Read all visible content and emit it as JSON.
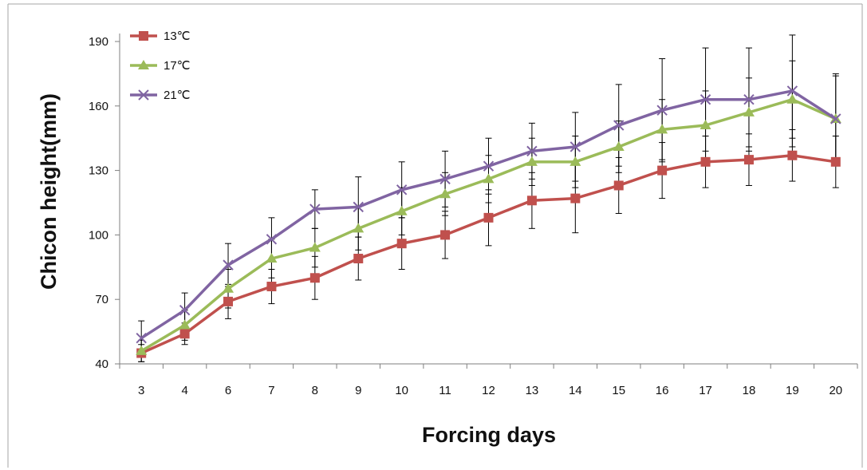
{
  "chart_data": {
    "type": "line",
    "title": "",
    "xlabel": "Forcing days",
    "ylabel": "Chicon height(mm)",
    "categories": [
      "3",
      "4",
      "6",
      "7",
      "8",
      "9",
      "10",
      "11",
      "12",
      "13",
      "14",
      "15",
      "16",
      "17",
      "18",
      "19",
      "20"
    ],
    "ylim": [
      40,
      190
    ],
    "yticks": [
      40,
      70,
      100,
      130,
      160,
      190
    ],
    "grid": false,
    "legend_position": "top-left",
    "series": [
      {
        "name": "13℃",
        "color": "#c0504d",
        "marker": "square",
        "values": [
          45,
          54,
          69,
          76,
          80,
          89,
          96,
          100,
          108,
          116,
          117,
          123,
          130,
          134,
          135,
          137,
          134
        ],
        "error": [
          4,
          5,
          8,
          8,
          10,
          10,
          12,
          11,
          13,
          13,
          16,
          13,
          13,
          12,
          12,
          12,
          12
        ]
      },
      {
        "name": "17℃",
        "color": "#9bbb59",
        "marker": "triangle",
        "values": [
          46,
          58,
          75,
          89,
          94,
          103,
          111,
          119,
          126,
          134,
          134,
          141,
          149,
          151,
          157,
          163,
          154
        ],
        "error": [
          5,
          7,
          9,
          9,
          9,
          10,
          11,
          10,
          11,
          11,
          12,
          12,
          14,
          16,
          16,
          18,
          20
        ]
      },
      {
        "name": "21℃",
        "color": "#8064a2",
        "marker": "x",
        "values": [
          52,
          65,
          86,
          98,
          112,
          113,
          121,
          126,
          132,
          139,
          141,
          151,
          158,
          163,
          163,
          167,
          154
        ],
        "error": [
          8,
          8,
          10,
          10,
          9,
          14,
          13,
          13,
          13,
          13,
          16,
          19,
          24,
          24,
          24,
          26,
          21
        ]
      }
    ]
  }
}
